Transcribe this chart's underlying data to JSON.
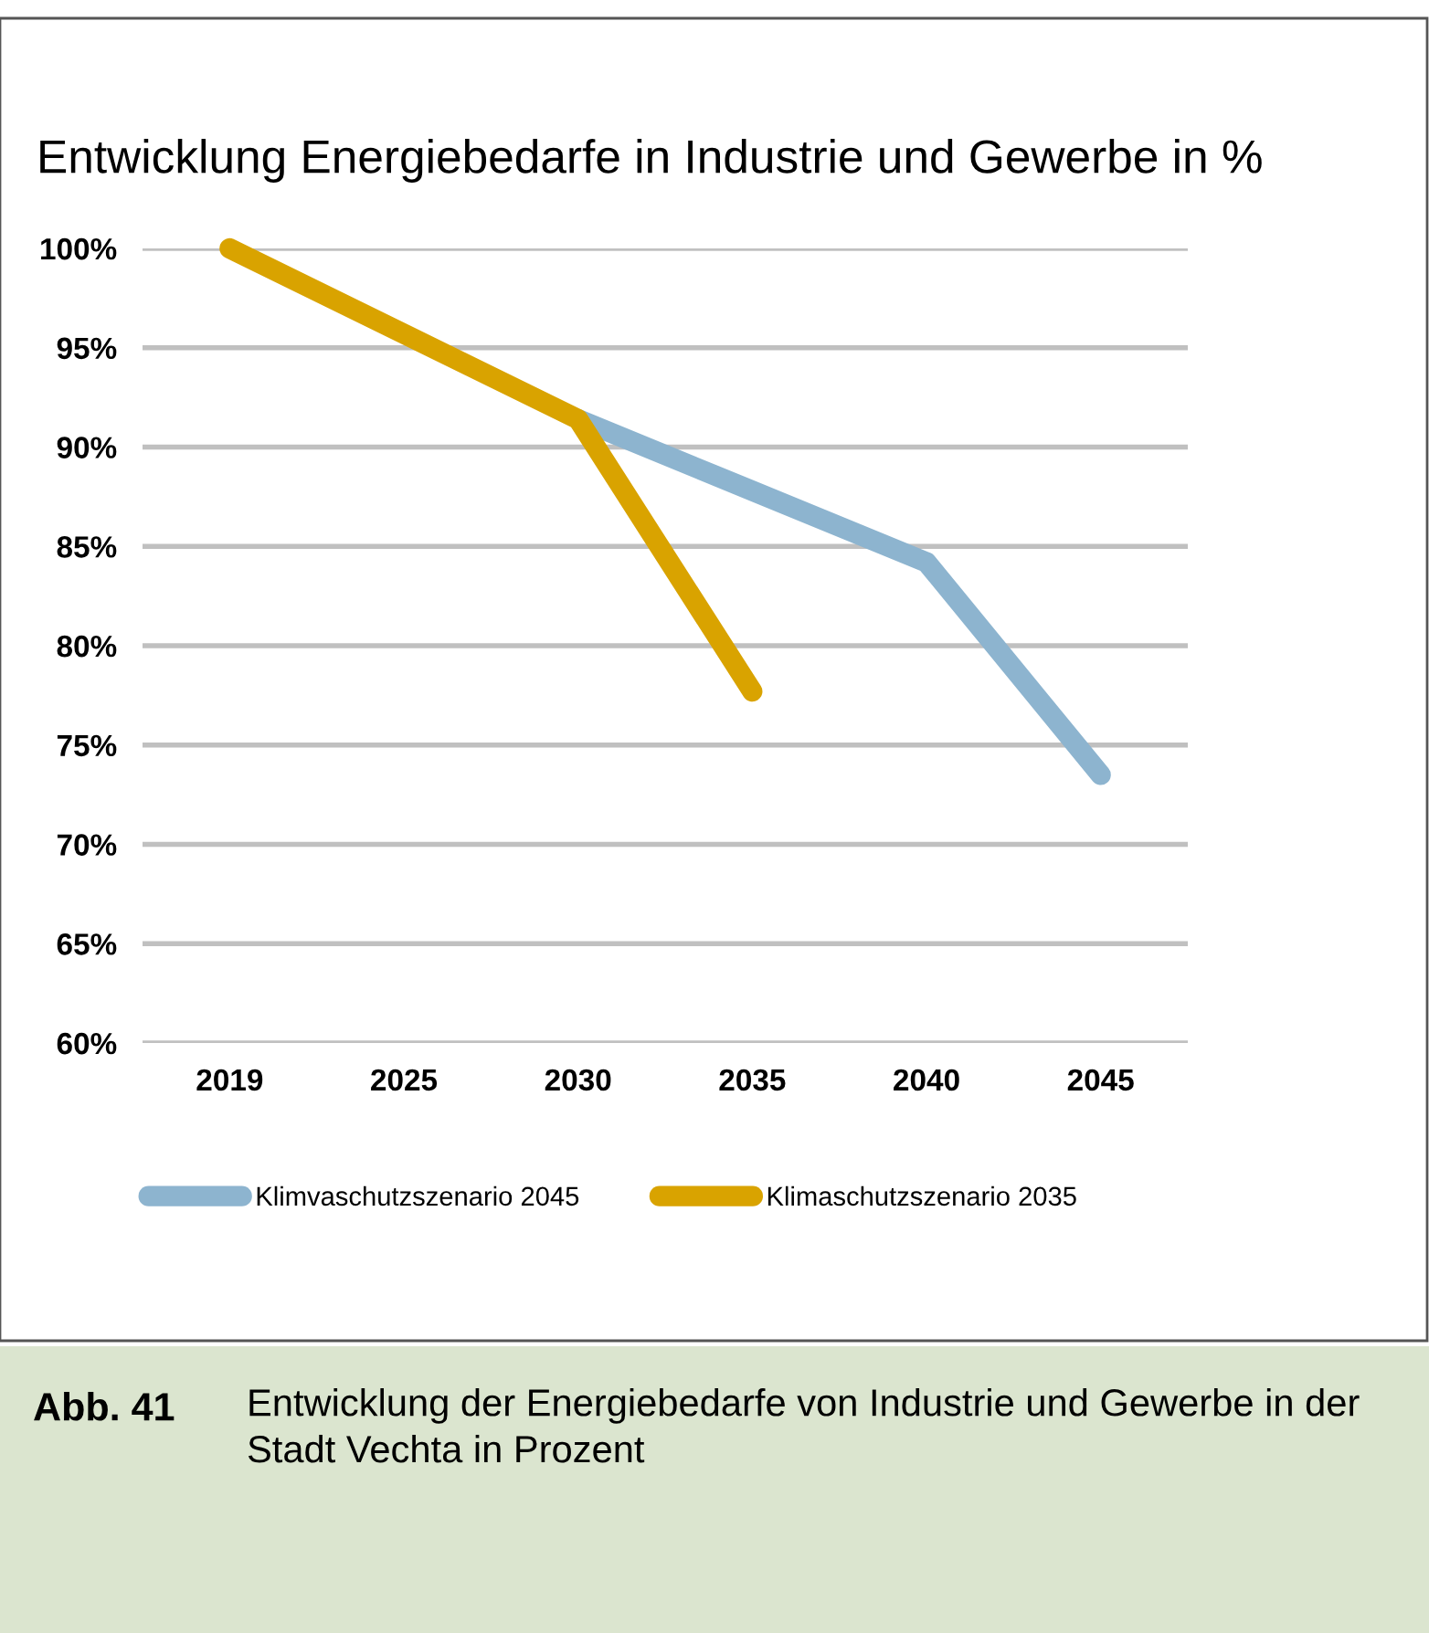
{
  "chart_data": {
    "type": "line",
    "title": "Entwicklung Energiebedarfe in Industrie und Gewerbe in %",
    "categories": [
      "2019",
      "2025",
      "2030",
      "2035",
      "2040",
      "2045"
    ],
    "series": [
      {
        "name": "Klimvaschutzszenario 2045",
        "color": "#8db4cf",
        "values": [
          null,
          null,
          91.4,
          87.8,
          84.2,
          73.5
        ]
      },
      {
        "name": "Klimaschutzszenario 2035",
        "color": "#d9a300",
        "values": [
          100,
          95.7,
          91.4,
          77.7,
          null,
          null
        ]
      }
    ],
    "ylim": [
      60,
      100
    ],
    "yticks": [
      {
        "value": 60,
        "label": "60%"
      },
      {
        "value": 65,
        "label": "65%"
      },
      {
        "value": 70,
        "label": "70%"
      },
      {
        "value": 75,
        "label": "75%"
      },
      {
        "value": 80,
        "label": "80%"
      },
      {
        "value": 85,
        "label": "85%"
      },
      {
        "value": 90,
        "label": "90%"
      },
      {
        "value": 95,
        "label": "95%"
      },
      {
        "value": 100,
        "label": "100%"
      }
    ],
    "grid": "y",
    "legend": "bottom",
    "line_style": "solid",
    "annotations": [
      "Abb. 41",
      "Entwicklung der Energiebedarfe von Industrie und Gewerbe in der Stadt Vechta in Prozent"
    ]
  }
}
